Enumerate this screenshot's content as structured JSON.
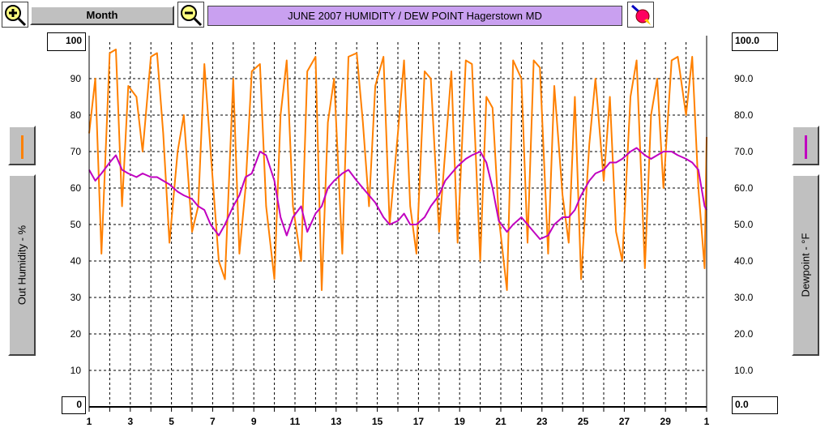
{
  "toolbar": {
    "period_label": "Month",
    "title": "JUNE 2007  HUMIDITY / DEW POINT  Hagerstown MD"
  },
  "left_panel": {
    "axis_label": "Out Humidity - %",
    "swatch_color": "#ff8000"
  },
  "right_panel": {
    "axis_label": "Dewpoint - °F",
    "swatch_color": "#c000c0"
  },
  "chart_data": {
    "type": "line",
    "title": "JUNE 2007  HUMIDITY / DEW POINT  Hagerstown MD",
    "x_tick_labels": [
      "1",
      "3",
      "5",
      "7",
      "9",
      "11",
      "13",
      "15",
      "17",
      "19",
      "21",
      "23",
      "25",
      "27",
      "29",
      "1"
    ],
    "x_days": [
      1,
      3,
      5,
      7,
      9,
      11,
      13,
      15,
      17,
      19,
      21,
      23,
      25,
      27,
      29,
      31
    ],
    "xlim": [
      1,
      31
    ],
    "y_left": {
      "label": "Out Humidity - %",
      "ylim": [
        0,
        100
      ],
      "max_label": "100",
      "min_label": "0",
      "tick_labels": [
        "90",
        "80",
        "70",
        "60",
        "50",
        "40",
        "30",
        "20",
        "10"
      ],
      "ticks": [
        90,
        80,
        70,
        60,
        50,
        40,
        30,
        20,
        10
      ]
    },
    "y_right": {
      "label": "Dewpoint - °F",
      "ylim": [
        0,
        100
      ],
      "max_label": "100.0",
      "min_label": "0.0",
      "tick_labels": [
        "90.0",
        "80.0",
        "70.0",
        "60.0",
        "50.0",
        "40.0",
        "30.0",
        "20.0",
        "10.0"
      ],
      "ticks": [
        90,
        80,
        70,
        60,
        50,
        40,
        30,
        20,
        10
      ]
    },
    "grid": true,
    "series": [
      {
        "name": "Out Humidity - %",
        "axis": "left",
        "color": "#ff8000",
        "x": [
          1.0,
          1.3,
          1.6,
          2.0,
          2.3,
          2.6,
          2.9,
          3.3,
          3.6,
          4.0,
          4.3,
          4.6,
          4.9,
          5.3,
          5.6,
          6.0,
          6.3,
          6.6,
          6.9,
          7.3,
          7.6,
          8.0,
          8.3,
          8.6,
          8.9,
          9.3,
          9.6,
          10.0,
          10.3,
          10.6,
          10.9,
          11.3,
          11.6,
          12.0,
          12.3,
          12.6,
          12.9,
          13.3,
          13.6,
          14.0,
          14.3,
          14.6,
          14.9,
          15.3,
          15.6,
          16.0,
          16.3,
          16.6,
          16.9,
          17.3,
          17.6,
          18.0,
          18.3,
          18.6,
          18.9,
          19.3,
          19.6,
          20.0,
          20.3,
          20.6,
          20.9,
          21.3,
          21.6,
          22.0,
          22.3,
          22.6,
          22.9,
          23.3,
          23.6,
          24.0,
          24.3,
          24.6,
          24.9,
          25.3,
          25.6,
          26.0,
          26.3,
          26.6,
          26.9,
          27.3,
          27.6,
          28.0,
          28.3,
          28.6,
          28.9,
          29.3,
          29.6,
          30.0,
          30.3,
          30.6,
          30.9,
          31.0
        ],
        "values": [
          75,
          90,
          42,
          97,
          98,
          55,
          88,
          85,
          70,
          96,
          97,
          75,
          45,
          70,
          80,
          48,
          55,
          94,
          70,
          40,
          35,
          90,
          42,
          60,
          92,
          94,
          55,
          35,
          80,
          95,
          55,
          40,
          92,
          96,
          32,
          78,
          90,
          42,
          96,
          97,
          78,
          55,
          88,
          96,
          50,
          75,
          95,
          55,
          42,
          92,
          90,
          48,
          70,
          92,
          45,
          95,
          94,
          40,
          85,
          82,
          52,
          32,
          95,
          90,
          45,
          95,
          93,
          42,
          88,
          58,
          45,
          85,
          35,
          72,
          90,
          62,
          85,
          48,
          40,
          85,
          95,
          38,
          80,
          90,
          60,
          95,
          96,
          80,
          96,
          60,
          38,
          74
        ]
      },
      {
        "name": "Dewpoint - °F",
        "axis": "right",
        "color": "#c000c0",
        "x": [
          1.0,
          1.3,
          1.6,
          2.0,
          2.3,
          2.6,
          2.9,
          3.3,
          3.6,
          4.0,
          4.3,
          4.6,
          4.9,
          5.3,
          5.6,
          6.0,
          6.3,
          6.6,
          6.9,
          7.3,
          7.6,
          8.0,
          8.3,
          8.6,
          8.9,
          9.3,
          9.6,
          10.0,
          10.3,
          10.6,
          10.9,
          11.3,
          11.6,
          12.0,
          12.3,
          12.6,
          12.9,
          13.3,
          13.6,
          14.0,
          14.3,
          14.6,
          14.9,
          15.3,
          15.6,
          16.0,
          16.3,
          16.6,
          16.9,
          17.3,
          17.6,
          18.0,
          18.3,
          18.6,
          18.9,
          19.3,
          19.6,
          20.0,
          20.3,
          20.6,
          20.9,
          21.3,
          21.6,
          22.0,
          22.3,
          22.6,
          22.9,
          23.3,
          23.6,
          24.0,
          24.3,
          24.6,
          24.9,
          25.3,
          25.6,
          26.0,
          26.3,
          26.6,
          26.9,
          27.3,
          27.6,
          28.0,
          28.3,
          28.6,
          28.9,
          29.3,
          29.6,
          30.0,
          30.3,
          30.6,
          30.9,
          31.0
        ],
        "values": [
          65,
          62,
          64,
          67,
          69,
          65,
          64,
          63,
          64,
          63,
          63,
          62,
          61,
          59,
          58,
          57,
          55,
          54,
          50,
          47,
          50,
          55,
          58,
          63,
          64,
          70,
          69,
          62,
          52,
          47,
          52,
          55,
          48,
          53,
          55,
          60,
          62,
          64,
          65,
          62,
          60,
          58,
          56,
          52,
          50,
          51,
          53,
          50,
          50,
          52,
          55,
          58,
          62,
          64,
          66,
          68,
          69,
          70,
          67,
          60,
          51,
          48,
          50,
          52,
          50,
          48,
          46,
          47,
          50,
          52,
          52,
          54,
          58,
          62,
          64,
          65,
          67,
          67,
          68,
          70,
          71,
          69,
          68,
          69,
          70,
          70,
          69,
          68,
          67,
          65,
          55,
          54
        ]
      }
    ]
  }
}
